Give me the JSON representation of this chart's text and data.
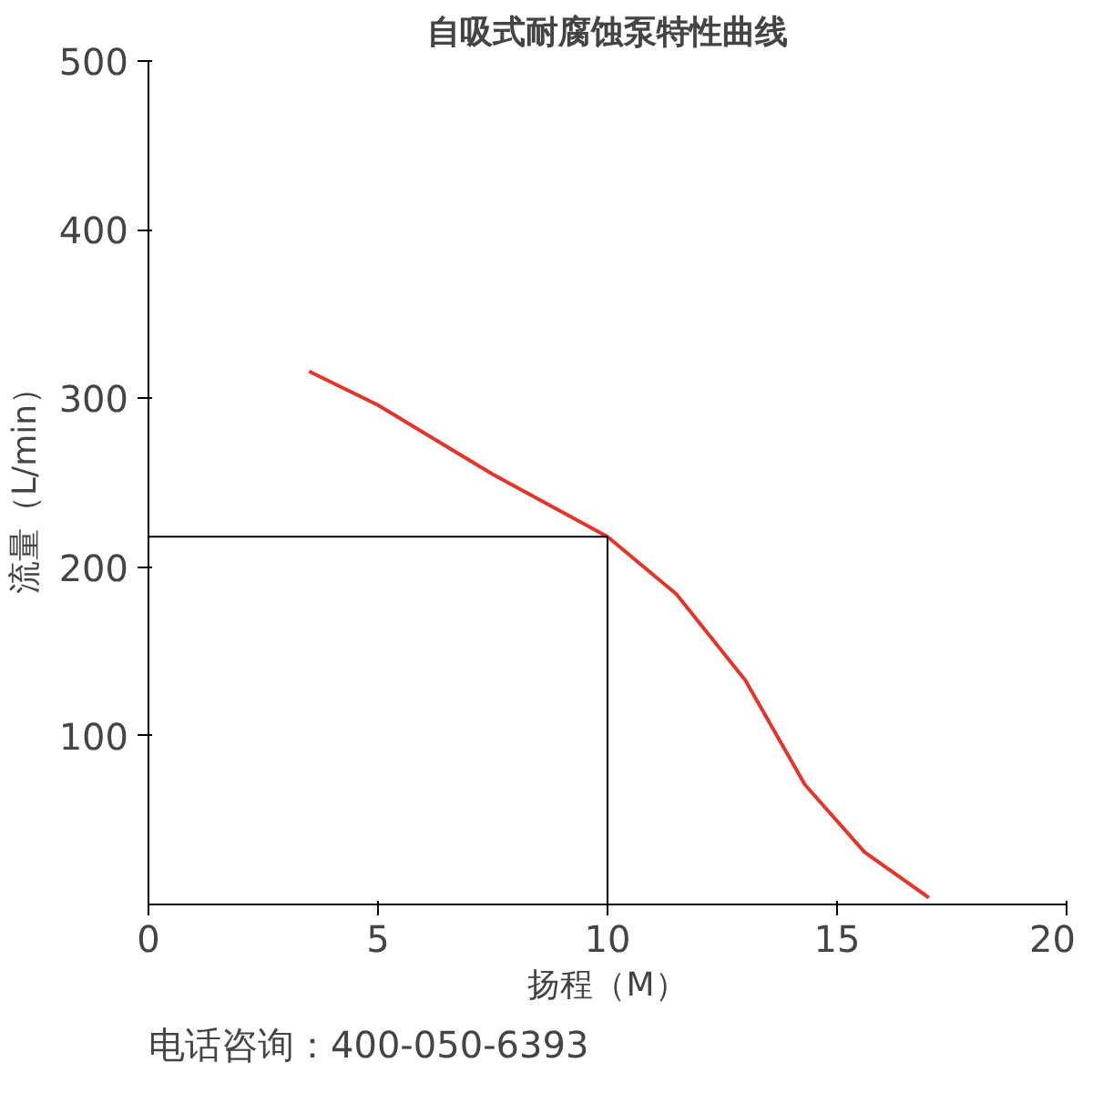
{
  "chart_data": {
    "type": "line",
    "title": "自吸式耐腐蚀泵特性曲线",
    "xlabel": "扬程（M）",
    "ylabel": "流量（L/min）",
    "annotations": [
      "电话咨询：400-050-6393"
    ],
    "series": [
      {
        "color": "#e8332a",
        "x": [
          3.5,
          5,
          7.5,
          10,
          11.5,
          13,
          14.3,
          15.6,
          17
        ],
        "values": [
          316,
          296,
          255,
          218,
          184,
          133,
          71,
          31,
          4
        ]
      }
    ],
    "xlim": [
      0,
      20
    ],
    "xticks": [
      0,
      5,
      10,
      15,
      20
    ],
    "ylim": [
      0,
      500
    ],
    "yticks": [
      100,
      200,
      300,
      400,
      500
    ],
    "ref_lines": [
      {
        "axis": "x",
        "value": 10,
        "color": "#000000"
      },
      {
        "axis": "y",
        "value": 218,
        "color": "#000000"
      }
    ],
    "grid": false,
    "marker": "none",
    "line_style": "solid"
  }
}
